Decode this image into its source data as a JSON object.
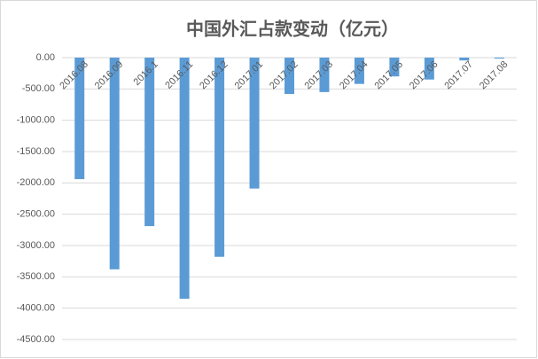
{
  "chart_data": {
    "type": "bar",
    "title": "中国外汇占款变动（亿元）",
    "categories": [
      "2016.08",
      "2016.09",
      "2016.1",
      "2016.11",
      "2016.12",
      "2017.01",
      "2017.02",
      "2017.03",
      "2017.04",
      "2017.05",
      "2017.06",
      "2017.07",
      "2017.08"
    ],
    "values": [
      -1940,
      -3380,
      -2690,
      -3850,
      -3180,
      -2090,
      -580,
      -550,
      -420,
      -300,
      -350,
      -45,
      -15
    ],
    "color": "#5b9bd5",
    "ylim": [
      -4500,
      0
    ],
    "yticks": [
      {
        "value": 0,
        "label": "0.00"
      },
      {
        "value": -500,
        "label": "-500.00"
      },
      {
        "value": -1000,
        "label": "-1000.00"
      },
      {
        "value": -1500,
        "label": "-1500.00"
      },
      {
        "value": -2000,
        "label": "-2000.00"
      },
      {
        "value": -2500,
        "label": "-2500.00"
      },
      {
        "value": -3000,
        "label": "-3000.00"
      },
      {
        "value": -3500,
        "label": "-3500.00"
      },
      {
        "value": -4000,
        "label": "-4000.00"
      },
      {
        "value": -4500,
        "label": "-4500.00"
      }
    ],
    "grid": true
  }
}
